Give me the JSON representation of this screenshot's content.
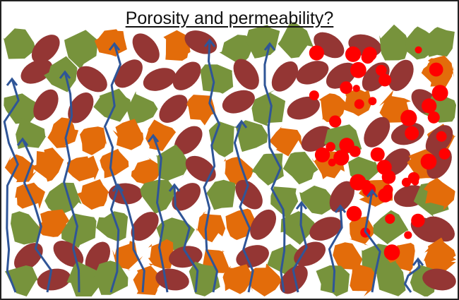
{
  "title": "Porosity and permeability?",
  "colors": {
    "green_grain": "#77933c",
    "orange_grain": "#e36c0a",
    "brown_grain": "#943634",
    "red_cement": "#ff0000",
    "flow_arrow": "#2f5597",
    "border": "#222222"
  }
}
